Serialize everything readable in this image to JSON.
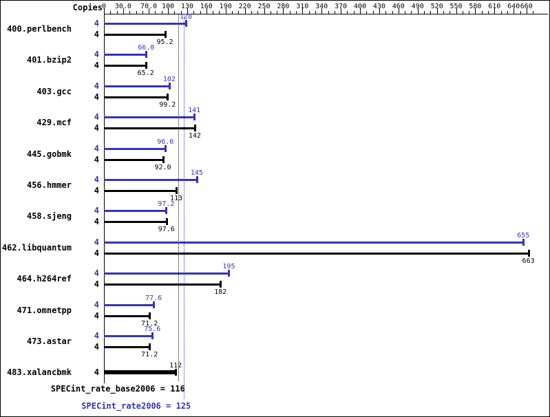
{
  "chart_data": {
    "type": "bar",
    "orientation": "horizontal",
    "copies_header": "Copies",
    "x_axis": {
      "ticks": [
        {
          "label": "0",
          "value": 0
        },
        {
          "label": "30.0",
          "value": 30
        },
        {
          "label": "70.0",
          "value": 70
        },
        {
          "label": "100",
          "value": 100
        },
        {
          "label": "130",
          "value": 130
        },
        {
          "label": "160",
          "value": 160
        },
        {
          "label": "190",
          "value": 190
        },
        {
          "label": "220",
          "value": 220
        },
        {
          "label": "250",
          "value": 250
        },
        {
          "label": "280",
          "value": 280
        },
        {
          "label": "310",
          "value": 310
        },
        {
          "label": "340",
          "value": 340
        },
        {
          "label": "370",
          "value": 370
        },
        {
          "label": "400",
          "value": 400
        },
        {
          "label": "430",
          "value": 430
        },
        {
          "label": "460",
          "value": 460
        },
        {
          "label": "490",
          "value": 490
        },
        {
          "label": "520",
          "value": 520
        },
        {
          "label": "550",
          "value": 550
        },
        {
          "label": "580",
          "value": 580
        },
        {
          "label": "610",
          "value": 610
        },
        {
          "label": "640",
          "value": 640
        },
        {
          "label": "660",
          "value": 660
        }
      ],
      "minor_tick_step": 10,
      "max": 670
    },
    "series_colors": {
      "peak": "#3333bb",
      "base": "#000000",
      "merged": "#000000"
    },
    "benchmarks": [
      {
        "name": "400.perlbench",
        "bars": [
          {
            "series": "peak",
            "copies": "4",
            "value": 128,
            "label": "128"
          },
          {
            "series": "base",
            "copies": "4",
            "value": 95.2,
            "label": "95.2"
          }
        ]
      },
      {
        "name": "401.bzip2",
        "bars": [
          {
            "series": "peak",
            "copies": "4",
            "value": 66.0,
            "label": "66.0"
          },
          {
            "series": "base",
            "copies": "4",
            "value": 65.2,
            "label": "65.2"
          }
        ]
      },
      {
        "name": "403.gcc",
        "bars": [
          {
            "series": "peak",
            "copies": "4",
            "value": 102,
            "label": "102"
          },
          {
            "series": "base",
            "copies": "4",
            "value": 99.2,
            "label": "99.2"
          }
        ]
      },
      {
        "name": "429.mcf",
        "bars": [
          {
            "series": "peak",
            "copies": "4",
            "value": 141,
            "label": "141"
          },
          {
            "series": "base",
            "copies": "4",
            "value": 142,
            "label": "142"
          }
        ]
      },
      {
        "name": "445.gobmk",
        "bars": [
          {
            "series": "peak",
            "copies": "4",
            "value": 96.0,
            "label": "96.0"
          },
          {
            "series": "base",
            "copies": "4",
            "value": 92.0,
            "label": "92.0"
          }
        ]
      },
      {
        "name": "456.hmmer",
        "bars": [
          {
            "series": "peak",
            "copies": "4",
            "value": 145,
            "label": "145"
          },
          {
            "series": "base",
            "copies": "4",
            "value": 113,
            "label": "113"
          }
        ]
      },
      {
        "name": "458.sjeng",
        "bars": [
          {
            "series": "peak",
            "copies": "4",
            "value": 97.2,
            "label": "97.2"
          },
          {
            "series": "base",
            "copies": "4",
            "value": 97.6,
            "label": "97.6"
          }
        ]
      },
      {
        "name": "462.libquantum",
        "bars": [
          {
            "series": "peak",
            "copies": "4",
            "value": 655,
            "label": "655"
          },
          {
            "series": "base",
            "copies": "4",
            "value": 663,
            "label": "663"
          }
        ]
      },
      {
        "name": "464.h264ref",
        "bars": [
          {
            "series": "peak",
            "copies": "4",
            "value": 195,
            "label": "195"
          },
          {
            "series": "base",
            "copies": "4",
            "value": 182,
            "label": "182"
          }
        ]
      },
      {
        "name": "471.omnetpp",
        "bars": [
          {
            "series": "peak",
            "copies": "4",
            "value": 77.6,
            "label": "77.6"
          },
          {
            "series": "base",
            "copies": "4",
            "value": 71.2,
            "label": "71.2"
          }
        ]
      },
      {
        "name": "473.astar",
        "bars": [
          {
            "series": "peak",
            "copies": "4",
            "value": 75.6,
            "label": "75.6"
          },
          {
            "series": "base",
            "copies": "4",
            "value": 71.2,
            "label": "71.2"
          }
        ]
      },
      {
        "name": "483.xalancbmk",
        "bars": [
          {
            "series": "merged",
            "copies": "4",
            "value": 112,
            "label": "112"
          }
        ]
      }
    ],
    "reference_lines": [
      {
        "series": "base",
        "value": 116,
        "label": "SPECint_rate_base2006 = 116"
      },
      {
        "series": "peak",
        "value": 125,
        "label": "SPECint_rate2006 = 125"
      }
    ]
  }
}
